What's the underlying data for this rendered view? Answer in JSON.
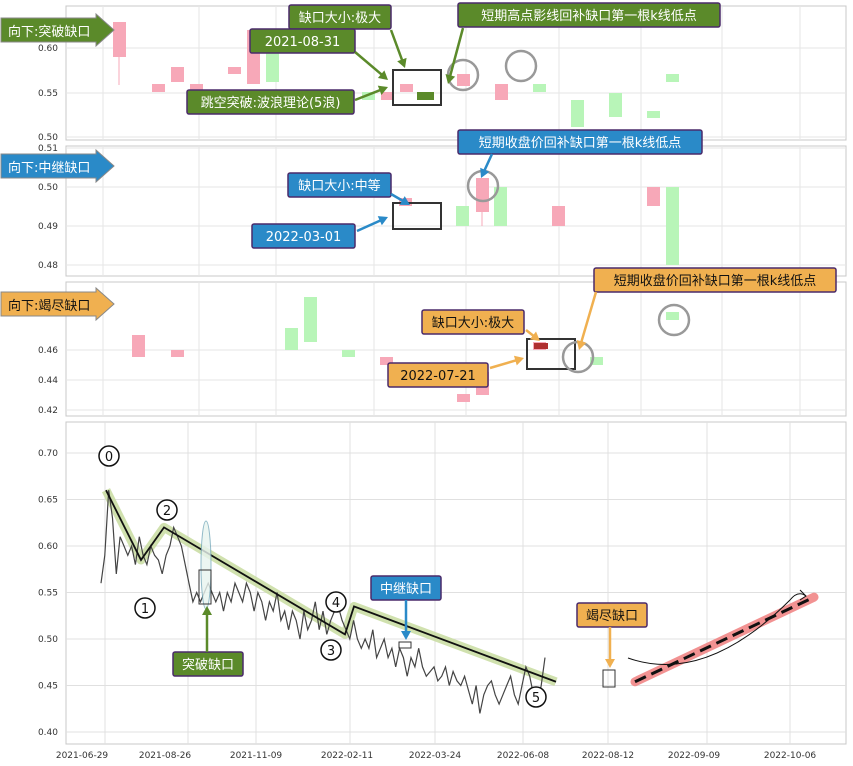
{
  "chart_data": {
    "type": "candlestick-with-line",
    "panels": [
      {
        "tag": "向下:突破缺口",
        "tag_color": "#5b8a2a",
        "ylim": [
          0.5,
          0.63
        ],
        "yticks": [
          "0.50",
          "0.55",
          "0.60"
        ],
        "annotations": [
          {
            "text": "缺口大小:极大",
            "color": "#5b8a2a"
          },
          {
            "text": "短期高点影线回补缺口第一根k线低点",
            "color": "#5b8a2a"
          },
          {
            "text": "2021-08-31",
            "color": "#5b8a2a"
          },
          {
            "text": "跳空突破:波浪理论(5浪)",
            "color": "#5b8a2a"
          }
        ]
      },
      {
        "tag": "向下:中继缺口",
        "tag_color": "#2a8ac8",
        "ylim": [
          0.475,
          0.51
        ],
        "yticks": [
          "0.48",
          "0.49",
          "0.50",
          "0.51"
        ],
        "annotations": [
          {
            "text": "短期收盘价回补缺口第一根k线低点",
            "color": "#2a8ac8"
          },
          {
            "text": "缺口大小:中等",
            "color": "#2a8ac8"
          },
          {
            "text": "2022-03-01",
            "color": "#2a8ac8"
          }
        ]
      },
      {
        "tag": "向下:竭尽缺口",
        "tag_color": "#f0b050",
        "ylim": [
          0.415,
          0.5
        ],
        "yticks": [
          "0.42",
          "0.44",
          "0.46"
        ],
        "annotations": [
          {
            "text": "短期收盘价回补缺口第一根k线低点",
            "color": "#f0b050"
          },
          {
            "text": "缺口大小:极大",
            "color": "#f0b050"
          },
          {
            "text": "2022-07-21",
            "color": "#f0b050"
          }
        ]
      }
    ],
    "main": {
      "ylim": [
        0.395,
        0.73
      ],
      "yticks": [
        "0.40",
        "0.45",
        "0.50",
        "0.55",
        "0.60",
        "0.65",
        "0.70"
      ],
      "xticks": [
        "2021-06-29",
        "2021-08-26",
        "2021-11-09",
        "2022-02-11",
        "2022-03-24",
        "2022-06-08",
        "2022-08-12",
        "2022-09-09",
        "2022-10-06"
      ],
      "wave_labels": [
        "0",
        "1",
        "2",
        "3",
        "4",
        "5"
      ],
      "wave_points": [
        {
          "t": 5,
          "y": 0.66
        },
        {
          "t": 40,
          "y": 0.585
        },
        {
          "t": 63,
          "y": 0.62
        },
        {
          "t": 244,
          "y": 0.505
        },
        {
          "t": 253,
          "y": 0.535
        },
        {
          "t": 455,
          "y": 0.454
        }
      ],
      "price": [
        0.56,
        0.59,
        0.66,
        0.63,
        0.57,
        0.61,
        0.6,
        0.59,
        0.6,
        0.58,
        0.61,
        0.59,
        0.58,
        0.6,
        0.59,
        0.585,
        0.57,
        0.59,
        0.6,
        0.62,
        0.61,
        0.6,
        0.58,
        0.56,
        0.54,
        0.55,
        0.54,
        0.55,
        0.56,
        0.55,
        0.54,
        0.55,
        0.53,
        0.55,
        0.54,
        0.56,
        0.55,
        0.54,
        0.56,
        0.55,
        0.53,
        0.55,
        0.54,
        0.52,
        0.54,
        0.53,
        0.55,
        0.52,
        0.53,
        0.51,
        0.53,
        0.52,
        0.5,
        0.53,
        0.51,
        0.52,
        0.54,
        0.51,
        0.53,
        0.505,
        0.52,
        0.53,
        0.535,
        0.52,
        0.51,
        0.5,
        0.52,
        0.5,
        0.49,
        0.5,
        0.49,
        0.51,
        0.48,
        0.49,
        0.5,
        0.48,
        0.49,
        0.47,
        0.49,
        0.48,
        0.46,
        0.48,
        0.47,
        0.49,
        0.47,
        0.46,
        0.465,
        0.47,
        0.455,
        0.46,
        0.47,
        0.45,
        0.465,
        0.455,
        0.45,
        0.46,
        0.445,
        0.43,
        0.45,
        0.42,
        0.44,
        0.45,
        0.455,
        0.44,
        0.43,
        0.44,
        0.45,
        0.46,
        0.44,
        0.43,
        0.45,
        0.47,
        0.46,
        0.44,
        0.43,
        0.45,
        0.48
      ],
      "projection": {
        "from": {
          "t": 455,
          "y": 0.454
        },
        "to": {
          "t": 700,
          "y": 0.545
        }
      },
      "labels": [
        {
          "text": "突破缺口",
          "color": "#5b8a2a"
        },
        {
          "text": "中继缺口",
          "color": "#2a8ac8"
        },
        {
          "text": "竭尽缺口",
          "color": "#f0b050"
        }
      ]
    }
  }
}
